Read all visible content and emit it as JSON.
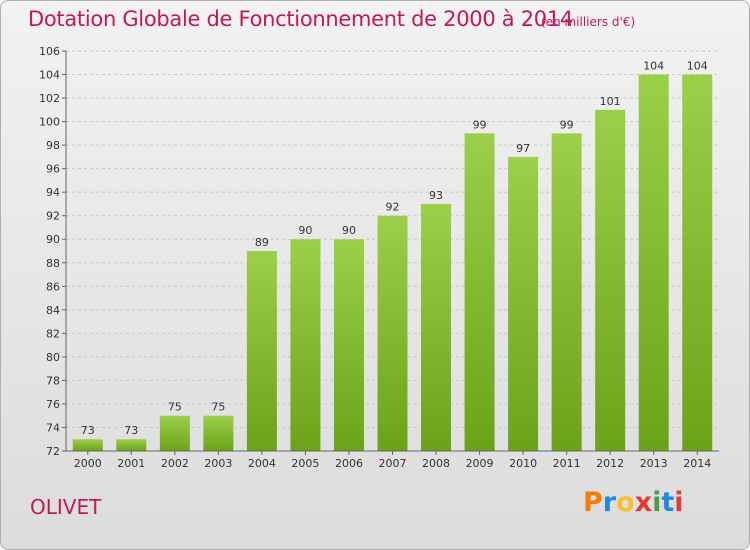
{
  "header": {
    "title": "Dotation Globale de Fonctionnement de 2000 à 2014",
    "subtitle": "(en milliers d'€)"
  },
  "footer": {
    "place": "OLIVET",
    "logo_text": "Proxiti"
  },
  "colors": {
    "title": "#c2185b",
    "bar_light": "#9ccf4a",
    "bar_dark": "#6aa319",
    "logo_letters": [
      "#f57c00",
      "#1e88e5",
      "#fbc02d",
      "#e53935",
      "#43a047",
      "#1e88e5",
      "#e53935"
    ]
  },
  "chart_data": {
    "type": "bar",
    "title": "Dotation Globale de Fonctionnement de 2000 à 2014",
    "subtitle": "(en milliers d'€)",
    "xlabel": "",
    "ylabel": "",
    "categories": [
      "2000",
      "2001",
      "2002",
      "2003",
      "2004",
      "2005",
      "2006",
      "2007",
      "2008",
      "2009",
      "2010",
      "2011",
      "2012",
      "2013",
      "2014"
    ],
    "values": [
      73,
      73,
      75,
      75,
      89,
      90,
      90,
      92,
      93,
      99,
      97,
      99,
      101,
      104,
      104
    ],
    "ylim": [
      72,
      106
    ],
    "yticks": [
      72,
      74,
      76,
      78,
      80,
      82,
      84,
      86,
      88,
      90,
      92,
      94,
      96,
      98,
      100,
      102,
      104,
      106
    ],
    "grid": true
  }
}
